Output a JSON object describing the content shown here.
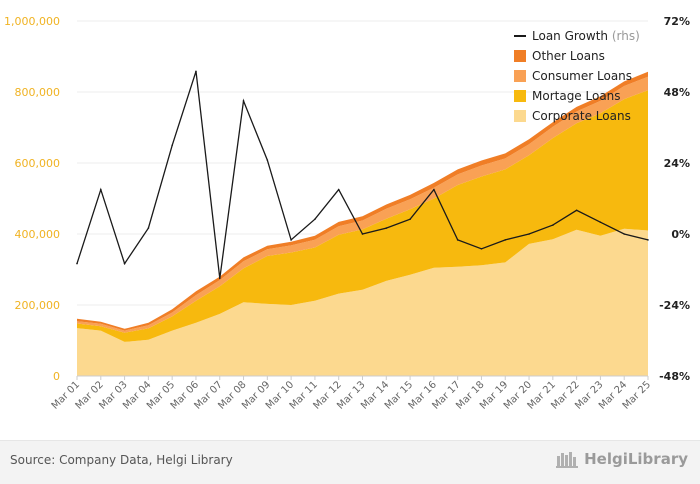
{
  "chart_data": {
    "type": "area",
    "x_labels": [
      "Mar 01",
      "Mar 02",
      "Mar 03",
      "Mar 04",
      "Mar 05",
      "Mar 06",
      "Mar 07",
      "Mar 08",
      "Mar 09",
      "Mar 10",
      "Mar 11",
      "Mar 12",
      "Mar 13",
      "Mar 14",
      "Mar 15",
      "Mar 16",
      "Mar 17",
      "Mar 18",
      "Mar 19",
      "Mar 20",
      "Mar 21",
      "Mar 22",
      "Mar 23",
      "Mar 24",
      "Mar 25"
    ],
    "left_axis": {
      "ylim": [
        0,
        1000000
      ],
      "ticks": [
        "0",
        "200,000",
        "400,000",
        "600,000",
        "800,000",
        "1,000,000"
      ]
    },
    "right_axis": {
      "ylim": [
        -48,
        72
      ],
      "ticks": [
        "-48%",
        "-24%",
        "0%",
        "24%",
        "48%",
        "72%"
      ]
    },
    "legend": {
      "position": "top-right"
    },
    "series": [
      {
        "name": "Corporate Loans",
        "color": "#fcd98f",
        "values": [
          135000,
          128000,
          96000,
          102000,
          128000,
          150000,
          175000,
          208000,
          203000,
          200000,
          212000,
          232000,
          243000,
          268000,
          285000,
          305000,
          308000,
          312000,
          320000,
          372000,
          385000,
          412000,
          395000,
          415000,
          410000
        ]
      },
      {
        "name": "Mortage Loans",
        "color": "#f7b90e",
        "values": [
          13000,
          12000,
          26000,
          32000,
          40000,
          62000,
          78000,
          95000,
          135000,
          148000,
          150000,
          166000,
          170000,
          175000,
          185000,
          195000,
          230000,
          250000,
          262000,
          250000,
          285000,
          300000,
          345000,
          365000,
          395000
        ]
      },
      {
        "name": "Consumer Loans",
        "color": "#f9a155",
        "values": [
          6000,
          7000,
          6000,
          9000,
          11000,
          16000,
          17000,
          20000,
          19000,
          20000,
          22000,
          24000,
          25000,
          28000,
          28000,
          30000,
          30000,
          31000,
          31000,
          31000,
          32000,
          33000,
          35000,
          37000,
          38000
        ]
      },
      {
        "name": "Other Loans",
        "color": "#f07e26",
        "values": [
          7000,
          6000,
          5000,
          7000,
          9000,
          11000,
          10000,
          11000,
          10000,
          10000,
          11000,
          12000,
          12000,
          12000,
          12000,
          14000,
          14000,
          14000,
          14000,
          14000,
          13000,
          13000,
          13000,
          13000,
          14000
        ]
      }
    ],
    "line_series": {
      "name": "Loan Growth",
      "axis_note": "(rhs)",
      "color": "#1a1a1a",
      "values": [
        -10,
        15,
        -10,
        2,
        30,
        55,
        -15,
        45,
        25,
        -2,
        5,
        15,
        0,
        2,
        5,
        15,
        -2,
        -5,
        -2,
        0,
        3,
        8,
        4,
        0,
        -2
      ]
    }
  },
  "footer": {
    "source": "Source: Company Data, Helgi Library",
    "brand": "HelgiLibrary"
  }
}
